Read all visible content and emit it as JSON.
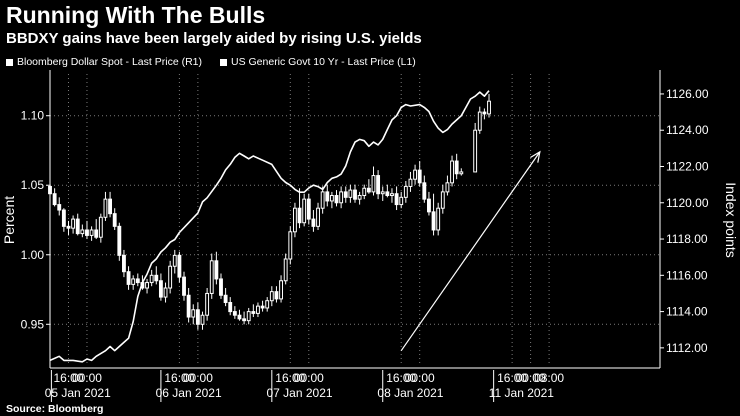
{
  "header": {
    "title": "Running With The Bulls",
    "subtitle": "BBDXY gains have been largely aided by rising U.S. yields"
  },
  "legend": {
    "items": [
      {
        "label": "Bloomberg Dollar Spot - Last Price (R1)"
      },
      {
        "label": "US Generic Govt 10 Yr - Last Price (L1)"
      }
    ]
  },
  "source": "Source: Bloomberg",
  "colors": {
    "background": "#000000",
    "foreground": "#ffffff",
    "grid": "#7a7a7a"
  },
  "chart_data": {
    "type": "line",
    "ylabel_left": "Percent",
    "ylabel_right": "Index points",
    "yleft_range": [
      0.92,
      1.13
    ],
    "yleft_ticks": [
      "1.10",
      "1.05",
      "1.00",
      "0.95"
    ],
    "yright_range": [
      1111,
      1127.1
    ],
    "yright_ticks": [
      "1126.00",
      "1124.00",
      "1122.00",
      "1120.00",
      "1118.00",
      "1116.00",
      "1114.00",
      "1112.00"
    ],
    "x_range": [
      0,
      132
    ],
    "x_ticks": [
      {
        "x": 4,
        "label": "16:00"
      },
      {
        "x": 8,
        "label": "00:00"
      },
      {
        "x": 28,
        "label": "16:00"
      },
      {
        "x": 32,
        "label": "00:00"
      },
      {
        "x": 52,
        "label": "16:00"
      },
      {
        "x": 56,
        "label": "00:00"
      },
      {
        "x": 76,
        "label": "16:00"
      },
      {
        "x": 80,
        "label": "00:00"
      },
      {
        "x": 100,
        "label": "16:00"
      },
      {
        "x": 104,
        "label": "00:00"
      },
      {
        "x": 108,
        "label": "08:00"
      }
    ],
    "day_labels": [
      {
        "x": 6,
        "label": "05 Jan 2021"
      },
      {
        "x": 30,
        "label": "06 Jan 2021"
      },
      {
        "x": 54,
        "label": "07 Jan 2021"
      },
      {
        "x": 78,
        "label": "08 Jan 2021"
      },
      {
        "x": 102,
        "label": "11 Jan 2021"
      }
    ],
    "day_separators": [
      0,
      24,
      48,
      72,
      96
    ],
    "series": [
      {
        "name": "US Generic Govt 10 Yr - Last Price (L1)",
        "axis": "left",
        "points": [
          [
            0,
            0.924
          ],
          [
            2,
            0.927
          ],
          [
            3,
            0.924
          ],
          [
            5,
            0.924
          ],
          [
            7,
            0.923
          ],
          [
            8,
            0.925
          ],
          [
            9,
            0.924
          ],
          [
            10,
            0.927
          ],
          [
            12,
            0.931
          ],
          [
            13,
            0.934
          ],
          [
            14,
            0.931
          ],
          [
            15,
            0.934
          ],
          [
            16,
            0.937
          ],
          [
            17,
            0.94
          ],
          [
            18,
            0.952
          ],
          [
            19,
            0.97
          ],
          [
            20,
            0.98
          ],
          [
            21,
            0.986
          ],
          [
            22,
            0.994
          ],
          [
            23,
            0.997
          ],
          [
            24,
            1.002
          ],
          [
            25,
            1.005
          ],
          [
            26,
            1.009
          ],
          [
            27,
            1.011
          ],
          [
            28,
            1.016
          ],
          [
            30,
            1.023
          ],
          [
            32,
            1.03
          ],
          [
            33,
            1.038
          ],
          [
            34,
            1.041
          ],
          [
            36,
            1.05
          ],
          [
            37,
            1.055
          ],
          [
            38,
            1.061
          ],
          [
            39,
            1.065
          ],
          [
            40,
            1.07
          ],
          [
            41,
            1.073
          ],
          [
            42,
            1.071
          ],
          [
            43,
            1.069
          ],
          [
            44,
            1.071
          ],
          [
            46,
            1.068
          ],
          [
            48,
            1.065
          ],
          [
            49,
            1.06
          ],
          [
            50,
            1.055
          ],
          [
            51,
            1.052
          ],
          [
            52,
            1.05
          ],
          [
            53,
            1.047
          ],
          [
            54,
            1.045
          ],
          [
            55,
            1.045
          ],
          [
            56,
            1.048
          ],
          [
            57,
            1.05
          ],
          [
            58,
            1.049
          ],
          [
            59,
            1.047
          ],
          [
            60,
            1.052
          ],
          [
            61,
            1.055
          ],
          [
            62,
            1.056
          ],
          [
            63,
            1.058
          ],
          [
            64,
            1.064
          ],
          [
            65,
            1.074
          ],
          [
            66,
            1.081
          ],
          [
            67,
            1.083
          ],
          [
            68,
            1.082
          ],
          [
            69,
            1.078
          ],
          [
            70,
            1.081
          ],
          [
            71,
            1.079
          ],
          [
            72,
            1.083
          ],
          [
            73,
            1.09
          ],
          [
            74,
            1.097
          ],
          [
            75,
            1.1
          ],
          [
            76,
            1.106
          ],
          [
            77,
            1.108
          ],
          [
            78,
            1.107
          ],
          [
            80,
            1.108
          ],
          [
            81,
            1.106
          ],
          [
            82,
            1.103
          ],
          [
            83,
            1.096
          ],
          [
            84,
            1.091
          ],
          [
            85,
            1.088
          ],
          [
            86,
            1.09
          ],
          [
            87,
            1.094
          ],
          [
            88,
            1.097
          ],
          [
            89,
            1.1
          ],
          [
            90,
            1.106
          ],
          [
            91,
            1.112
          ],
          [
            92,
            1.114
          ],
          [
            93,
            1.117
          ],
          [
            94,
            1.114
          ],
          [
            95,
            1.118
          ]
        ]
      },
      {
        "name": "Bloomberg Dollar Spot - Last Price (R1)",
        "axis": "right",
        "candles": [
          [
            0,
            1120.9,
            1121.0,
            1120.1,
            1120.5
          ],
          [
            1,
            1120.5,
            1120.8,
            1119.8,
            1119.9
          ],
          [
            2,
            1119.9,
            1120.3,
            1119.3,
            1119.6
          ],
          [
            3,
            1119.6,
            1119.7,
            1118.4,
            1118.7
          ],
          [
            4,
            1118.7,
            1119.0,
            1118.2,
            1118.6
          ],
          [
            5,
            1118.6,
            1119.3,
            1118.3,
            1119.1
          ],
          [
            6,
            1119.1,
            1119.4,
            1118.2,
            1118.3
          ],
          [
            7,
            1118.3,
            1118.8,
            1118.1,
            1118.5
          ],
          [
            8,
            1118.5,
            1119.0,
            1118.0,
            1118.2
          ],
          [
            9,
            1118.2,
            1118.7,
            1117.9,
            1118.5
          ],
          [
            10,
            1118.5,
            1119.1,
            1118.0,
            1118.1
          ],
          [
            11,
            1118.1,
            1119.4,
            1117.8,
            1119.2
          ],
          [
            12,
            1119.2,
            1120.6,
            1119.0,
            1120.2
          ],
          [
            13,
            1120.2,
            1120.6,
            1119.2,
            1119.4
          ],
          [
            14,
            1119.4,
            1119.7,
            1118.5,
            1118.7
          ],
          [
            15,
            1118.7,
            1118.9,
            1116.8,
            1117.1
          ],
          [
            16,
            1117.1,
            1117.4,
            1115.9,
            1116.2
          ],
          [
            17,
            1116.2,
            1116.5,
            1115.2,
            1115.5
          ],
          [
            18,
            1115.5,
            1116.0,
            1115.2,
            1115.8
          ],
          [
            19,
            1115.8,
            1116.1,
            1115.4,
            1115.6
          ],
          [
            20,
            1115.6,
            1116.0,
            1115.2,
            1115.3
          ],
          [
            21,
            1115.3,
            1115.8,
            1115.0,
            1115.6
          ],
          [
            22,
            1115.6,
            1116.3,
            1115.4,
            1116.0
          ],
          [
            23,
            1116.0,
            1116.5,
            1115.5,
            1115.7
          ],
          [
            24,
            1115.7,
            1116.1,
            1114.6,
            1114.8
          ],
          [
            25,
            1114.8,
            1115.6,
            1114.5,
            1115.3
          ],
          [
            26,
            1115.3,
            1116.8,
            1115.0,
            1116.5
          ],
          [
            27,
            1116.5,
            1117.4,
            1116.1,
            1117.1
          ],
          [
            28,
            1117.1,
            1117.3,
            1115.6,
            1115.9
          ],
          [
            29,
            1115.9,
            1116.2,
            1114.6,
            1114.9
          ],
          [
            30,
            1114.9,
            1115.3,
            1113.4,
            1113.7
          ],
          [
            31,
            1113.7,
            1114.4,
            1113.3,
            1114.1
          ],
          [
            32,
            1114.1,
            1114.5,
            1113.0,
            1113.3
          ],
          [
            33,
            1113.3,
            1114.0,
            1113.0,
            1113.8
          ],
          [
            34,
            1113.8,
            1115.3,
            1113.5,
            1115.0
          ],
          [
            35,
            1115.0,
            1117.2,
            1114.7,
            1116.8
          ],
          [
            36,
            1116.8,
            1117.3,
            1115.5,
            1115.8
          ],
          [
            37,
            1115.8,
            1116.1,
            1114.7,
            1114.9
          ],
          [
            38,
            1114.9,
            1115.3,
            1114.3,
            1114.5
          ],
          [
            39,
            1114.5,
            1114.8,
            1113.8,
            1114.0
          ],
          [
            40,
            1114.0,
            1114.3,
            1113.6,
            1113.8
          ],
          [
            41,
            1113.8,
            1114.1,
            1113.5,
            1113.6
          ],
          [
            42,
            1113.6,
            1114.0,
            1113.3,
            1113.5
          ],
          [
            43,
            1113.5,
            1114.2,
            1113.3,
            1114.0
          ],
          [
            44,
            1114.0,
            1114.4,
            1113.7,
            1113.9
          ],
          [
            45,
            1113.9,
            1114.5,
            1113.7,
            1114.3
          ],
          [
            46,
            1114.3,
            1114.6,
            1114.0,
            1114.2
          ],
          [
            47,
            1114.2,
            1114.8,
            1114.0,
            1114.6
          ],
          [
            48,
            1114.6,
            1115.4,
            1114.3,
            1115.1
          ],
          [
            49,
            1115.1,
            1115.4,
            1114.5,
            1114.7
          ],
          [
            50,
            1114.7,
            1116.0,
            1114.5,
            1115.7
          ],
          [
            51,
            1115.7,
            1117.2,
            1115.5,
            1116.9
          ],
          [
            52,
            1116.9,
            1118.7,
            1116.6,
            1118.4
          ],
          [
            53,
            1118.4,
            1120.0,
            1118.1,
            1119.7
          ],
          [
            54,
            1119.7,
            1120.8,
            1118.6,
            1118.9
          ],
          [
            55,
            1118.9,
            1120.5,
            1118.7,
            1120.2
          ],
          [
            56,
            1120.2,
            1120.5,
            1118.8,
            1119.1
          ],
          [
            57,
            1119.1,
            1119.6,
            1118.4,
            1118.7
          ],
          [
            58,
            1118.7,
            1120.0,
            1118.5,
            1119.7
          ],
          [
            59,
            1119.7,
            1120.9,
            1119.4,
            1120.6
          ],
          [
            60,
            1120.6,
            1121.0,
            1119.8,
            1120.1
          ],
          [
            61,
            1120.1,
            1120.6,
            1119.7,
            1120.4
          ],
          [
            62,
            1120.4,
            1120.7,
            1119.8,
            1120.0
          ],
          [
            63,
            1120.0,
            1120.9,
            1119.7,
            1120.6
          ],
          [
            64,
            1120.6,
            1120.9,
            1120.0,
            1120.3
          ],
          [
            65,
            1120.3,
            1121.0,
            1120.0,
            1120.7
          ],
          [
            66,
            1120.7,
            1121.0,
            1120.0,
            1120.2
          ],
          [
            67,
            1120.2,
            1120.6,
            1119.9,
            1120.4
          ],
          [
            68,
            1120.4,
            1121.0,
            1120.2,
            1120.8
          ],
          [
            69,
            1120.8,
            1121.3,
            1120.5,
            1120.6
          ],
          [
            70,
            1120.6,
            1122.0,
            1120.4,
            1121.5
          ],
          [
            71,
            1121.5,
            1121.8,
            1120.2,
            1120.5
          ],
          [
            72,
            1120.5,
            1120.9,
            1120.1,
            1120.6
          ],
          [
            73,
            1120.6,
            1121.0,
            1120.3,
            1120.4
          ],
          [
            74,
            1120.4,
            1120.8,
            1120.0,
            1120.5
          ],
          [
            75,
            1120.5,
            1120.9,
            1119.6,
            1119.9
          ],
          [
            76,
            1119.9,
            1120.6,
            1119.7,
            1120.3
          ],
          [
            77,
            1120.3,
            1121.2,
            1120.0,
            1120.9
          ],
          [
            78,
            1120.9,
            1121.7,
            1120.6,
            1121.3
          ],
          [
            79,
            1121.3,
            1122.1,
            1121.0,
            1121.8
          ],
          [
            80,
            1121.8,
            1122.3,
            1120.9,
            1121.1
          ],
          [
            81,
            1121.1,
            1121.5,
            1120.0,
            1120.2
          ],
          [
            82,
            1120.2,
            1120.6,
            1119.3,
            1119.5
          ],
          [
            83,
            1119.5,
            1120.5,
            1118.2,
            1118.5
          ],
          [
            84,
            1118.5,
            1120.0,
            1118.2,
            1119.7
          ],
          [
            85,
            1119.7,
            1121.0,
            1119.4,
            1120.6
          ],
          [
            86,
            1120.6,
            1121.5,
            1120.4,
            1121.1
          ],
          [
            87,
            1121.1,
            1122.6,
            1120.9,
            1122.3
          ],
          [
            88,
            1122.3,
            1122.7,
            1121.3,
            1121.6
          ],
          [
            89,
            1121.6,
            1121.9,
            1121.5,
            1121.7
          ],
          [
            92,
            1121.7,
            1124.4,
            1121.7,
            1124.0
          ],
          [
            93,
            1124.0,
            1125.3,
            1123.8,
            1125.0
          ],
          [
            94,
            1125.0,
            1125.2,
            1124.6,
            1124.9
          ],
          [
            95,
            1124.9,
            1126.0,
            1124.7,
            1125.6
          ]
        ]
      }
    ],
    "annotation": {
      "type": "arrow",
      "from": [
        76,
        0.931
      ],
      "to": [
        106,
        1.074
      ]
    },
    "grid": true,
    "legend_position": "top-left"
  }
}
